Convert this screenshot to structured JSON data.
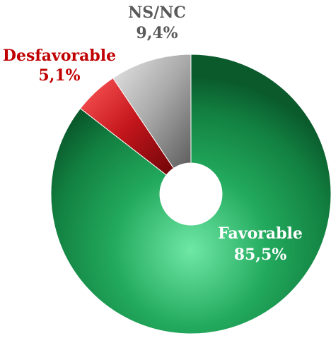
{
  "chart_data": {
    "type": "pie",
    "variant": "donut",
    "title": "",
    "slices": [
      {
        "name": "Favorable",
        "value": 85.5,
        "value_label": "85,5%",
        "color": "#1e9a52",
        "label_color": "#ffffff"
      },
      {
        "name": "Desfavorable",
        "value": 5.1,
        "value_label": "5,1%",
        "color": "#c4161c",
        "label_color": "#c00000"
      },
      {
        "name": "NS/NC",
        "value": 9.4,
        "value_label": "9,4%",
        "color": "#a9a9a9",
        "label_color": "#595959"
      }
    ],
    "start_angle_deg": 0,
    "direction": "clockwise"
  }
}
